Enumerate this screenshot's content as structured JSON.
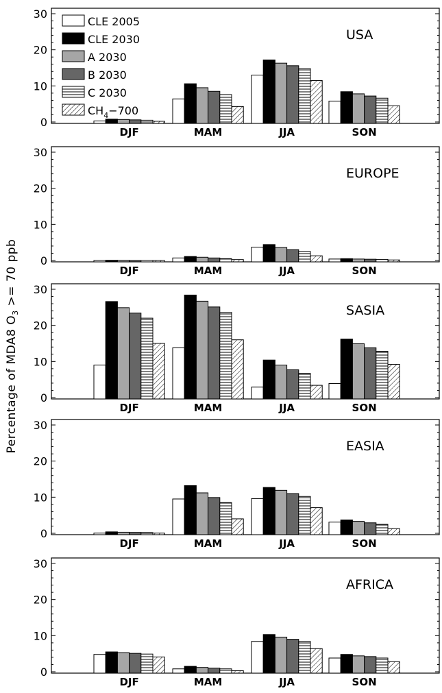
{
  "figure": {
    "ylabel_prefix": "Percentage of MDA8 O",
    "ylabel_sub": "3",
    "ylabel_suffix": " >= 70 ppb"
  },
  "legend": [
    {
      "label_main": "CLE 2005",
      "label_sub": "",
      "label_tail": "",
      "fill": "#ffffff",
      "pattern": "none"
    },
    {
      "label_main": "CLE 2030",
      "label_sub": "",
      "label_tail": "",
      "fill": "#000000",
      "pattern": "none"
    },
    {
      "label_main": "A 2030",
      "label_sub": "",
      "label_tail": "",
      "fill": "#a6a6a6",
      "pattern": "none"
    },
    {
      "label_main": "B 2030",
      "label_sub": "",
      "label_tail": "",
      "fill": "#666666",
      "pattern": "none"
    },
    {
      "label_main": "C 2030",
      "label_sub": "",
      "label_tail": "",
      "fill": "#ffffff",
      "pattern": "horizontal-lines"
    },
    {
      "label_main": "CH",
      "label_sub": "4",
      "label_tail": "−700",
      "fill": "#ffffff",
      "pattern": "diagonal-hatch"
    }
  ],
  "chart_data": [
    {
      "type": "bar",
      "region": "USA",
      "categories": [
        "DJF",
        "MAM",
        "JJA",
        "SON"
      ],
      "yticks": [
        0,
        10,
        20,
        30
      ],
      "ylim": [
        0,
        30
      ],
      "series": [
        {
          "name": "CLE 2005",
          "values": [
            0.3,
            6.4,
            13.0,
            5.8
          ]
        },
        {
          "name": "CLE 2030",
          "values": [
            0.8,
            10.6,
            17.2,
            8.4
          ]
        },
        {
          "name": "A 2030",
          "values": [
            0.7,
            9.5,
            16.3,
            7.8
          ]
        },
        {
          "name": "B 2030",
          "values": [
            0.6,
            8.5,
            15.6,
            7.2
          ]
        },
        {
          "name": "C 2030",
          "values": [
            0.5,
            7.6,
            14.8,
            6.6
          ]
        },
        {
          "name": "CH4-700",
          "values": [
            0.2,
            4.3,
            11.5,
            4.5
          ]
        }
      ]
    },
    {
      "type": "bar",
      "region": "EUROPE",
      "categories": [
        "DJF",
        "MAM",
        "JJA",
        "SON"
      ],
      "yticks": [
        0,
        10,
        20,
        30
      ],
      "ylim": [
        0,
        30
      ],
      "series": [
        {
          "name": "CLE 2005",
          "values": [
            0.0,
            0.7,
            3.7,
            0.4
          ]
        },
        {
          "name": "CLE 2030",
          "values": [
            0.05,
            1.1,
            4.4,
            0.5
          ]
        },
        {
          "name": "A 2030",
          "values": [
            0.05,
            0.9,
            3.6,
            0.4
          ]
        },
        {
          "name": "B 2030",
          "values": [
            0.0,
            0.7,
            3.0,
            0.35
          ]
        },
        {
          "name": "C 2030",
          "values": [
            0.0,
            0.5,
            2.5,
            0.3
          ]
        },
        {
          "name": "CH4-700",
          "values": [
            0.0,
            0.25,
            1.3,
            0.15
          ]
        }
      ]
    },
    {
      "type": "bar",
      "region": "SASIA",
      "categories": [
        "DJF",
        "MAM",
        "JJA",
        "SON"
      ],
      "yticks": [
        0,
        10,
        20,
        30
      ],
      "ylim": [
        0,
        30
      ],
      "series": [
        {
          "name": "CLE 2005",
          "values": [
            9.0,
            13.8,
            2.9,
            3.9
          ]
        },
        {
          "name": "CLE 2030",
          "values": [
            26.6,
            28.4,
            10.4,
            16.2
          ]
        },
        {
          "name": "A 2030",
          "values": [
            24.9,
            26.7,
            9.0,
            14.9
          ]
        },
        {
          "name": "B 2030",
          "values": [
            23.4,
            25.1,
            7.7,
            13.8
          ]
        },
        {
          "name": "C 2030",
          "values": [
            22.0,
            23.6,
            6.7,
            12.8
          ]
        },
        {
          "name": "CH4-700",
          "values": [
            15.0,
            16.0,
            3.4,
            9.2
          ]
        }
      ]
    },
    {
      "type": "bar",
      "region": "EASIA",
      "categories": [
        "DJF",
        "MAM",
        "JJA",
        "SON"
      ],
      "yticks": [
        0,
        10,
        20,
        30
      ],
      "ylim": [
        0,
        30
      ],
      "series": [
        {
          "name": "CLE 2005",
          "values": [
            0.05,
            9.5,
            9.6,
            3.1
          ]
        },
        {
          "name": "CLE 2030",
          "values": [
            0.4,
            13.2,
            12.7,
            3.7
          ]
        },
        {
          "name": "A 2030",
          "values": [
            0.3,
            11.2,
            11.9,
            3.3
          ]
        },
        {
          "name": "B 2030",
          "values": [
            0.25,
            9.9,
            11.0,
            2.9
          ]
        },
        {
          "name": "C 2030",
          "values": [
            0.2,
            8.5,
            10.2,
            2.5
          ]
        },
        {
          "name": "CH4-700",
          "values": [
            0.05,
            4.0,
            7.1,
            1.3
          ]
        }
      ]
    },
    {
      "type": "bar",
      "region": "AFRICA",
      "categories": [
        "DJF",
        "MAM",
        "JJA",
        "SON"
      ],
      "yticks": [
        0,
        10,
        20,
        30
      ],
      "ylim": [
        0,
        30
      ],
      "series": [
        {
          "name": "CLE 2005",
          "values": [
            4.8,
            0.8,
            8.4,
            3.8
          ]
        },
        {
          "name": "CLE 2030",
          "values": [
            5.5,
            1.5,
            10.3,
            4.8
          ]
        },
        {
          "name": "A 2030",
          "values": [
            5.3,
            1.2,
            9.6,
            4.4
          ]
        },
        {
          "name": "B 2030",
          "values": [
            5.1,
            1.0,
            9.0,
            4.2
          ]
        },
        {
          "name": "C 2030",
          "values": [
            4.9,
            0.8,
            8.4,
            3.8
          ]
        },
        {
          "name": "CH4-700",
          "values": [
            4.1,
            0.3,
            6.4,
            2.8
          ]
        }
      ]
    }
  ]
}
